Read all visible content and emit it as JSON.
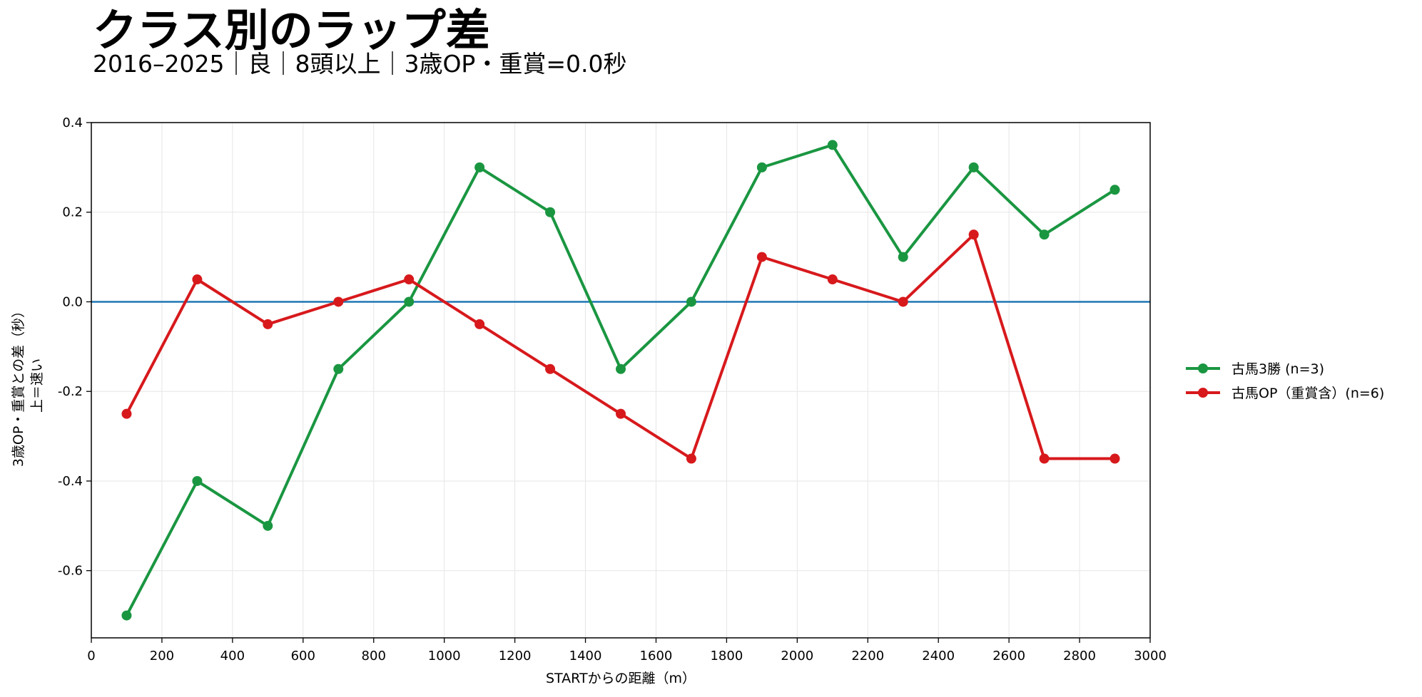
{
  "chart_data": {
    "type": "line",
    "title": "クラス別のラップ差",
    "subtitle": "2016–2025｜良｜8頭以上｜3歳OP・重賞=0.0秒",
    "xlabel": "STARTからの距離（m）",
    "ylabel": [
      "3歳OP・重賞との差（秒）",
      "上＝速い"
    ],
    "xlim": [
      0,
      3000
    ],
    "ylim": [
      -0.75,
      0.4
    ],
    "xticks": [
      0,
      200,
      400,
      600,
      800,
      1000,
      1200,
      1400,
      1600,
      1800,
      2000,
      2200,
      2400,
      2600,
      2800,
      3000
    ],
    "yticks": [
      -0.6,
      -0.4,
      -0.2,
      0.0,
      0.2,
      0.4
    ],
    "ytick_labels": [
      "-0.6",
      "-0.4",
      "-0.2",
      "0.0",
      "0.2",
      "0.4"
    ],
    "grid": true,
    "legend_position": "right",
    "baseline": {
      "y": 0.0,
      "color": "#1f77b4"
    },
    "x": [
      100,
      300,
      500,
      700,
      900,
      1100,
      1300,
      1500,
      1700,
      1900,
      2100,
      2300,
      2500,
      2700,
      2900
    ],
    "series": [
      {
        "name": "古馬3勝 (n=3)",
        "color": "#1a9641",
        "values": [
          -0.7,
          -0.4,
          -0.5,
          -0.15,
          0.0,
          0.3,
          0.2,
          -0.15,
          0.0,
          0.3,
          0.35,
          0.1,
          0.3,
          0.15,
          0.25
        ]
      },
      {
        "name": "古馬OP（重賞含）(n=6)",
        "color": "#d7191c",
        "values": [
          -0.25,
          0.05,
          -0.05,
          0.0,
          0.05,
          -0.05,
          -0.15,
          -0.25,
          -0.35,
          0.1,
          0.05,
          0.0,
          0.15,
          -0.35,
          -0.35
        ]
      }
    ]
  }
}
